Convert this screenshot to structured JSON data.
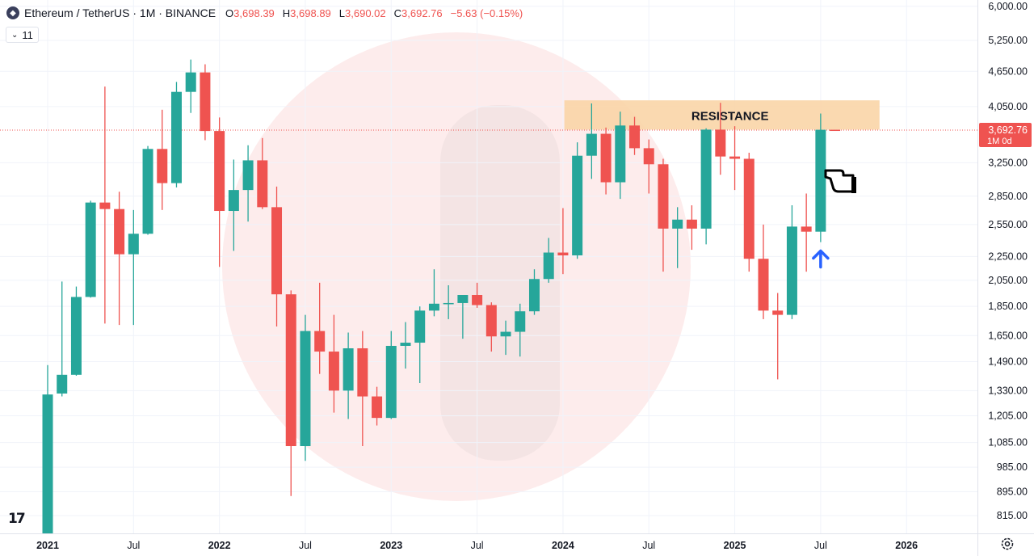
{
  "header": {
    "symbol": "Ethereum / TetherUS · 1M · BINANCE",
    "open_label": "O",
    "open": "3,698.39",
    "high_label": "H",
    "high": "3,698.89",
    "low_label": "L",
    "low": "3,690.02",
    "close_label": "C",
    "close": "3,692.76",
    "change": "−5.63 (−0.15%)",
    "indicator_count": "11",
    "coin_icon": "ethereum-icon"
  },
  "price_tag": {
    "price": "3,692.76",
    "countdown": "1M 0d"
  },
  "colors": {
    "up": "#26a69a",
    "down": "#ef5350",
    "resistance": "#f9d5a7",
    "arrow": "#2962ff",
    "watermark": "#fdecec"
  },
  "chart_data": {
    "type": "candlestick",
    "interval": "1M",
    "scale": "log",
    "ylim": [
      760,
      6150
    ],
    "y_ticks": [
      6000,
      5250,
      4650,
      4050,
      3692.76,
      3250,
      2850,
      2550,
      2250,
      2050,
      1850,
      1650,
      1490,
      1330,
      1205,
      1085,
      985,
      895,
      815
    ],
    "y_tick_labels": [
      "6,000.00",
      "5,250.00",
      "4,650.00",
      "4,050.00",
      "",
      "3,250.00",
      "2,850.00",
      "2,550.00",
      "2,250.00",
      "2,050.00",
      "1,850.00",
      "1,650.00",
      "1,490.00",
      "1,330.00",
      "1,205.00",
      "1,085.00",
      "985.00",
      "895.00",
      "815.00"
    ],
    "x_labels": [
      {
        "label": "2021",
        "month": 0,
        "bold": true
      },
      {
        "label": "Jul",
        "month": 6,
        "bold": false
      },
      {
        "label": "2022",
        "month": 12,
        "bold": true
      },
      {
        "label": "Jul",
        "month": 18,
        "bold": false
      },
      {
        "label": "2023",
        "month": 24,
        "bold": true
      },
      {
        "label": "Jul",
        "month": 30,
        "bold": false
      },
      {
        "label": "2024",
        "month": 36,
        "bold": true
      },
      {
        "label": "Jul",
        "month": 42,
        "bold": false
      },
      {
        "label": "2025",
        "month": 48,
        "bold": true
      },
      {
        "label": "Jul",
        "month": 54,
        "bold": false
      },
      {
        "label": "2026",
        "month": 60,
        "bold": true
      }
    ],
    "candles": [
      {
        "date": "2021-01",
        "o": 740,
        "h": 1470,
        "l": 720,
        "c": 1310
      },
      {
        "date": "2021-02",
        "o": 1315,
        "h": 2040,
        "l": 1300,
        "c": 1415
      },
      {
        "date": "2021-03",
        "o": 1415,
        "h": 2000,
        "l": 1410,
        "c": 1920
      },
      {
        "date": "2021-04",
        "o": 1920,
        "h": 2800,
        "l": 1915,
        "c": 2780
      },
      {
        "date": "2021-05",
        "o": 2780,
        "h": 4380,
        "l": 1730,
        "c": 2710
      },
      {
        "date": "2021-06",
        "o": 2710,
        "h": 2900,
        "l": 1720,
        "c": 2270
      },
      {
        "date": "2021-07",
        "o": 2270,
        "h": 2700,
        "l": 1720,
        "c": 2460
      },
      {
        "date": "2021-08",
        "o": 2460,
        "h": 3470,
        "l": 2450,
        "c": 3430
      },
      {
        "date": "2021-09",
        "o": 3430,
        "h": 4000,
        "l": 2700,
        "c": 3000
      },
      {
        "date": "2021-10",
        "o": 3000,
        "h": 4460,
        "l": 2950,
        "c": 4290
      },
      {
        "date": "2021-11",
        "o": 4290,
        "h": 4870,
        "l": 3950,
        "c": 4630
      },
      {
        "date": "2021-12",
        "o": 4630,
        "h": 4780,
        "l": 3550,
        "c": 3680
      },
      {
        "date": "2022-01",
        "o": 3680,
        "h": 3880,
        "l": 2160,
        "c": 2690
      },
      {
        "date": "2022-02",
        "o": 2690,
        "h": 3290,
        "l": 2300,
        "c": 2920
      },
      {
        "date": "2022-03",
        "o": 2920,
        "h": 3480,
        "l": 2580,
        "c": 3280
      },
      {
        "date": "2022-04",
        "o": 3280,
        "h": 3580,
        "l": 2710,
        "c": 2730
      },
      {
        "date": "2022-05",
        "o": 2730,
        "h": 2960,
        "l": 1710,
        "c": 1940
      },
      {
        "date": "2022-06",
        "o": 1940,
        "h": 1970,
        "l": 880,
        "c": 1070
      },
      {
        "date": "2022-07",
        "o": 1070,
        "h": 1790,
        "l": 1010,
        "c": 1680
      },
      {
        "date": "2022-08",
        "o": 1680,
        "h": 2030,
        "l": 1420,
        "c": 1550
      },
      {
        "date": "2022-09",
        "o": 1550,
        "h": 1790,
        "l": 1220,
        "c": 1330
      },
      {
        "date": "2022-10",
        "o": 1330,
        "h": 1670,
        "l": 1190,
        "c": 1570
      },
      {
        "date": "2022-11",
        "o": 1570,
        "h": 1680,
        "l": 1070,
        "c": 1300
      },
      {
        "date": "2022-12",
        "o": 1300,
        "h": 1350,
        "l": 1160,
        "c": 1195
      },
      {
        "date": "2023-01",
        "o": 1195,
        "h": 1680,
        "l": 1190,
        "c": 1585
      },
      {
        "date": "2023-02",
        "o": 1585,
        "h": 1740,
        "l": 1450,
        "c": 1605
      },
      {
        "date": "2023-03",
        "o": 1605,
        "h": 1850,
        "l": 1370,
        "c": 1820
      },
      {
        "date": "2023-04",
        "o": 1820,
        "h": 2140,
        "l": 1780,
        "c": 1870
      },
      {
        "date": "2023-05",
        "o": 1870,
        "h": 2010,
        "l": 1760,
        "c": 1875
      },
      {
        "date": "2023-06",
        "o": 1875,
        "h": 1930,
        "l": 1630,
        "c": 1935
      },
      {
        "date": "2023-07",
        "o": 1935,
        "h": 2030,
        "l": 1840,
        "c": 1860
      },
      {
        "date": "2023-08",
        "o": 1860,
        "h": 1880,
        "l": 1550,
        "c": 1645
      },
      {
        "date": "2023-09",
        "o": 1645,
        "h": 1750,
        "l": 1530,
        "c": 1675
      },
      {
        "date": "2023-10",
        "o": 1675,
        "h": 1870,
        "l": 1520,
        "c": 1815
      },
      {
        "date": "2023-11",
        "o": 1815,
        "h": 2140,
        "l": 1790,
        "c": 2060
      },
      {
        "date": "2023-12",
        "o": 2060,
        "h": 2420,
        "l": 2030,
        "c": 2285
      },
      {
        "date": "2024-01",
        "o": 2285,
        "h": 2720,
        "l": 2100,
        "c": 2260
      },
      {
        "date": "2024-02",
        "o": 2260,
        "h": 3520,
        "l": 2230,
        "c": 3340
      },
      {
        "date": "2024-03",
        "o": 3340,
        "h": 4100,
        "l": 3050,
        "c": 3640
      },
      {
        "date": "2024-04",
        "o": 3640,
        "h": 3730,
        "l": 2870,
        "c": 3010
      },
      {
        "date": "2024-05",
        "o": 3010,
        "h": 3970,
        "l": 2820,
        "c": 3760
      },
      {
        "date": "2024-06",
        "o": 3760,
        "h": 3890,
        "l": 3350,
        "c": 3440
      },
      {
        "date": "2024-07",
        "o": 3440,
        "h": 3560,
        "l": 2880,
        "c": 3230
      },
      {
        "date": "2024-08",
        "o": 3230,
        "h": 3300,
        "l": 2120,
        "c": 2510
      },
      {
        "date": "2024-09",
        "o": 2510,
        "h": 2730,
        "l": 2150,
        "c": 2600
      },
      {
        "date": "2024-10",
        "o": 2600,
        "h": 2750,
        "l": 2310,
        "c": 2510
      },
      {
        "date": "2024-11",
        "o": 2510,
        "h": 3720,
        "l": 2360,
        "c": 3700
      },
      {
        "date": "2024-12",
        "o": 3700,
        "h": 4110,
        "l": 3100,
        "c": 3330
      },
      {
        "date": "2025-01",
        "o": 3330,
        "h": 3750,
        "l": 2920,
        "c": 3300
      },
      {
        "date": "2025-02",
        "o": 3300,
        "h": 3380,
        "l": 2120,
        "c": 2230
      },
      {
        "date": "2025-03",
        "o": 2230,
        "h": 2550,
        "l": 1760,
        "c": 1820
      },
      {
        "date": "2025-04",
        "o": 1820,
        "h": 1950,
        "l": 1390,
        "c": 1790
      },
      {
        "date": "2025-05",
        "o": 1790,
        "h": 2750,
        "l": 1760,
        "c": 2530
      },
      {
        "date": "2025-06",
        "o": 2530,
        "h": 2880,
        "l": 2120,
        "c": 2480
      },
      {
        "date": "2025-07",
        "o": 2480,
        "h": 3940,
        "l": 2380,
        "c": 3698
      },
      {
        "date": "2025-08",
        "o": 3698.39,
        "h": 3698.89,
        "l": 3690.02,
        "c": 3692.76
      }
    ],
    "last_price": 3692.76,
    "resistance": {
      "label": "RESISTANCE",
      "low": 3700,
      "high": 4150,
      "from": "2024-02",
      "to": "2025-11"
    }
  }
}
